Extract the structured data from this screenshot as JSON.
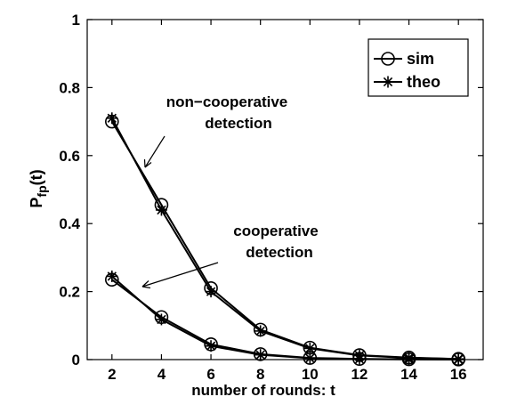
{
  "chart_data": {
    "type": "line",
    "x": [
      2,
      4,
      6,
      8,
      10,
      12,
      14,
      16
    ],
    "xticks": [
      "2",
      "4",
      "6",
      "8",
      "10",
      "12",
      "14",
      "16"
    ],
    "yticks": [
      "0",
      "0.2",
      "0.4",
      "0.6",
      "0.8",
      "1"
    ],
    "xlim": [
      1,
      17
    ],
    "ylim": [
      0,
      1
    ],
    "xlabel": "number of rounds: t",
    "ylabel": {
      "main": "P",
      "sub": "fp",
      "suffix": "(t)"
    },
    "grid": false,
    "legend": {
      "placement": "top-right",
      "entries": [
        {
          "label": "sim",
          "marker": "circle"
        },
        {
          "label": "theo",
          "marker": "star"
        }
      ]
    },
    "series": [
      {
        "group": "non-cooperative",
        "marker": "circle",
        "values": [
          0.7,
          0.455,
          0.21,
          0.088,
          0.035,
          0.013,
          0.006,
          0.002
        ]
      },
      {
        "group": "non-cooperative",
        "marker": "star",
        "values": [
          0.71,
          0.44,
          0.2,
          0.084,
          0.033,
          0.012,
          0.005,
          0.002
        ]
      },
      {
        "group": "cooperative",
        "marker": "circle",
        "values": [
          0.235,
          0.125,
          0.045,
          0.016,
          0.005,
          0.002,
          0.001,
          0.0003
        ]
      },
      {
        "group": "cooperative",
        "marker": "star",
        "values": [
          0.245,
          0.118,
          0.04,
          0.014,
          0.004,
          0.0015,
          0.0006,
          0.0002
        ]
      }
    ],
    "annotations": [
      {
        "id": "noncoop",
        "lines": [
          "non−cooperative",
          "detection"
        ]
      },
      {
        "id": "coop",
        "lines": [
          "cooperative",
          "detection"
        ]
      }
    ]
  }
}
